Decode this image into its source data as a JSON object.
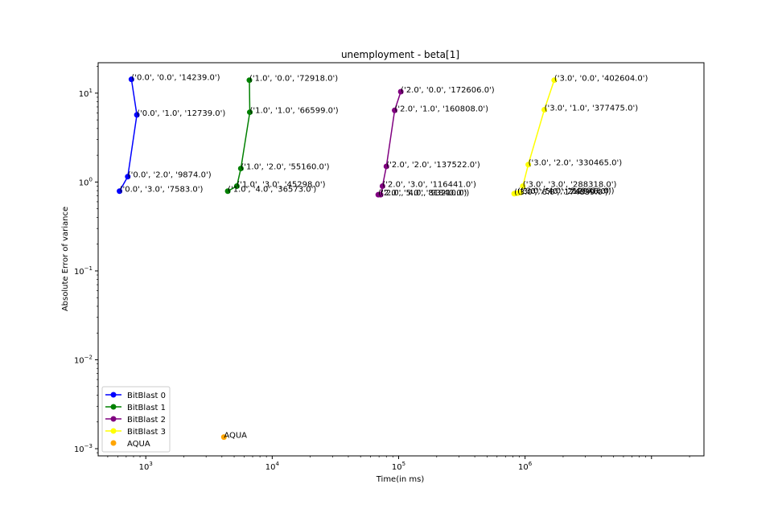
{
  "chart_data": {
    "type": "scatter",
    "title": "unemployment - beta[1]",
    "xlabel": "Time(in ms)",
    "ylabel": "Absolute Error of variance",
    "x_scale": "log",
    "y_scale": "log",
    "xlim": [
      420,
      26000000
    ],
    "ylim": [
      0.00083,
      22
    ],
    "grid": false,
    "legend_position": "lower left",
    "x_ticks": [
      {
        "value": 1000,
        "base": "10",
        "exp": "3"
      },
      {
        "value": 10000,
        "base": "10",
        "exp": "4"
      },
      {
        "value": 100000,
        "base": "10",
        "exp": "5"
      },
      {
        "value": 1000000,
        "base": "10",
        "exp": "6"
      }
    ],
    "y_ticks": [
      {
        "value": 0.001,
        "base": "10",
        "exp": "−3"
      },
      {
        "value": 0.01,
        "base": "10",
        "exp": "−2"
      },
      {
        "value": 0.1,
        "base": "10",
        "exp": "−1"
      },
      {
        "value": 1,
        "base": "10",
        "exp": "0"
      },
      {
        "value": 10,
        "base": "10",
        "exp": "1"
      }
    ],
    "series": [
      {
        "name": "BitBlast 0",
        "color": "#0000ff",
        "marker": "line+circle",
        "points": [
          {
            "x": 770,
            "y": 14.3,
            "label": "('0.0', '0.0', '14239.0')"
          },
          {
            "x": 850,
            "y": 5.7,
            "label": "('0.0', '1.0', '12739.0')"
          },
          {
            "x": 720,
            "y": 1.15,
            "label": "('0.0', '2.0', '9874.0')"
          },
          {
            "x": 620,
            "y": 0.79,
            "label": "('0.0', '3.0', '7583.0')"
          }
        ]
      },
      {
        "name": "BitBlast 1",
        "color": "#008000",
        "marker": "line+circle",
        "points": [
          {
            "x": 6600,
            "y": 14.0,
            "label": "('1.0', '0.0', '72918.0')"
          },
          {
            "x": 6650,
            "y": 6.1,
            "label": "('1.0', '1.0', '66599.0')"
          },
          {
            "x": 5650,
            "y": 1.42,
            "label": "('1.0', '2.0', '55160.0')"
          },
          {
            "x": 5250,
            "y": 0.9,
            "label": "('1.0', '3.0', '45298.0')"
          },
          {
            "x": 4450,
            "y": 0.79,
            "label": "('1.0', '4.0', '36573.0')"
          }
        ]
      },
      {
        "name": "BitBlast 2",
        "color": "#800080",
        "marker": "line+circle",
        "points": [
          {
            "x": 104000,
            "y": 10.4,
            "label": "('2.0', '0.0', '172606.0')"
          },
          {
            "x": 93000,
            "y": 6.4,
            "label": "('2.0', '1.0', '160808.0')"
          },
          {
            "x": 80000,
            "y": 1.5,
            "label": "('2.0', '2.0', '137522.0')"
          },
          {
            "x": 74500,
            "y": 0.9,
            "label": "('2.0', '3.0', '116441.0')"
          },
          {
            "x": 72000,
            "y": 0.72,
            "label": "('2.0', '4.0', '93210.0')"
          },
          {
            "x": 69000,
            "y": 0.72,
            "label": "('2.0', '5.0', '81840.0')"
          }
        ]
      },
      {
        "name": "BitBlast 3",
        "color": "#ffff00",
        "marker": "line+circle",
        "points": [
          {
            "x": 1700000,
            "y": 14.0,
            "label": "('3.0', '0.0', '402604.0')"
          },
          {
            "x": 1420000,
            "y": 6.5,
            "label": "('3.0', '1.0', '377475.0')"
          },
          {
            "x": 1060000,
            "y": 1.57,
            "label": "('3.0', '2.0', '330465.0')"
          },
          {
            "x": 960000,
            "y": 0.9,
            "label": "('3.0', '3.0', '288318.0')"
          },
          {
            "x": 920000,
            "y": 0.76,
            "label": "('3.0', '4.0', '249036.0')"
          },
          {
            "x": 870000,
            "y": 0.75,
            "label": "('3.0', '5.0', '212946.0')"
          },
          {
            "x": 820000,
            "y": 0.74,
            "label": "('3.0', '6.0', '174839.0')"
          }
        ]
      },
      {
        "name": "AQUA",
        "color": "#ffa500",
        "marker": "circle",
        "points": [
          {
            "x": 4150,
            "y": 0.00135,
            "label": "AQUA"
          }
        ]
      }
    ]
  }
}
